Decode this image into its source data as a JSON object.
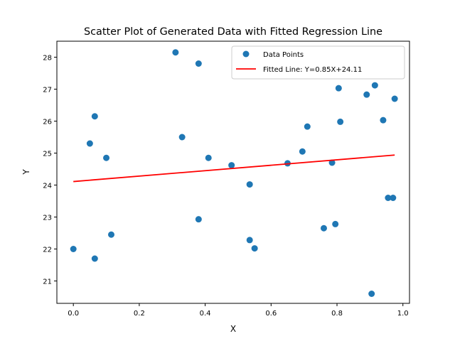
{
  "chart_data": {
    "type": "scatter",
    "title": "Scatter Plot of Generated Data with Fitted Regression Line",
    "xlabel": "X",
    "ylabel": "Y",
    "xlim": [
      -0.05,
      1.02
    ],
    "ylim": [
      20.3,
      28.5
    ],
    "xticks": [
      0.0,
      0.2,
      0.4,
      0.6,
      0.8,
      1.0
    ],
    "xtick_labels": [
      "0.0",
      "0.2",
      "0.4",
      "0.6",
      "0.8",
      "1.0"
    ],
    "yticks": [
      21,
      22,
      23,
      24,
      25,
      26,
      27,
      28
    ],
    "ytick_labels": [
      "21",
      "22",
      "23",
      "24",
      "25",
      "26",
      "27",
      "28"
    ],
    "grid": false,
    "legend_position": "top-right",
    "series": [
      {
        "name": "Data Points",
        "kind": "scatter",
        "color": "#1f77b4",
        "points": [
          {
            "x": 0.0,
            "y": 22.0
          },
          {
            "x": 0.05,
            "y": 25.3
          },
          {
            "x": 0.065,
            "y": 26.15
          },
          {
            "x": 0.065,
            "y": 21.7
          },
          {
            "x": 0.1,
            "y": 24.85
          },
          {
            "x": 0.115,
            "y": 22.45
          },
          {
            "x": 0.31,
            "y": 28.15
          },
          {
            "x": 0.33,
            "y": 25.5
          },
          {
            "x": 0.38,
            "y": 27.8
          },
          {
            "x": 0.38,
            "y": 22.93
          },
          {
            "x": 0.41,
            "y": 24.85
          },
          {
            "x": 0.48,
            "y": 24.62
          },
          {
            "x": 0.535,
            "y": 24.02
          },
          {
            "x": 0.535,
            "y": 22.28
          },
          {
            "x": 0.55,
            "y": 22.02
          },
          {
            "x": 0.65,
            "y": 24.68
          },
          {
            "x": 0.695,
            "y": 25.05
          },
          {
            "x": 0.71,
            "y": 25.83
          },
          {
            "x": 0.76,
            "y": 22.65
          },
          {
            "x": 0.785,
            "y": 24.7
          },
          {
            "x": 0.795,
            "y": 22.78
          },
          {
            "x": 0.805,
            "y": 27.03
          },
          {
            "x": 0.81,
            "y": 25.98
          },
          {
            "x": 0.89,
            "y": 26.83
          },
          {
            "x": 0.905,
            "y": 20.6
          },
          {
            "x": 0.915,
            "y": 27.12
          },
          {
            "x": 0.94,
            "y": 26.03
          },
          {
            "x": 0.955,
            "y": 23.6
          },
          {
            "x": 0.97,
            "y": 23.6
          },
          {
            "x": 0.975,
            "y": 26.7
          }
        ]
      },
      {
        "name": "Fitted Line: Y=0.85X+24.11",
        "kind": "line",
        "color": "#ff0000",
        "slope": 0.85,
        "intercept": 24.11,
        "x_range": [
          0.0,
          0.975
        ]
      }
    ]
  }
}
